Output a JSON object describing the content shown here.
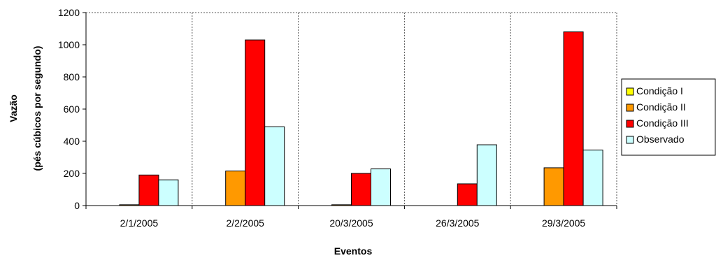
{
  "chart_data": {
    "type": "bar",
    "categories": [
      "2/1/2005",
      "2/2/2005",
      "20/3/2005",
      "26/3/2005",
      "29/3/2005"
    ],
    "series": [
      {
        "name": "Condição I",
        "color": "#FFFF00",
        "values": [
          0,
          0,
          0,
          0,
          0
        ]
      },
      {
        "name": "Condição II",
        "color": "#FF9900",
        "values": [
          5,
          215,
          5,
          0,
          235
        ]
      },
      {
        "name": "Condição III",
        "color": "#FF0000",
        "values": [
          190,
          1030,
          200,
          135,
          1080
        ]
      },
      {
        "name": "Observado",
        "color": "#CCFFFF",
        "values": [
          160,
          490,
          228,
          378,
          345
        ]
      }
    ],
    "xlabel": "Eventos",
    "ylabel_lines": [
      "Vazão",
      "(pés cúbicos por segundo)"
    ],
    "ylim": [
      0,
      1200
    ],
    "yticks": [
      "0",
      "200",
      "400",
      "600",
      "800",
      "1000",
      "1200"
    ],
    "legend_position": "right",
    "category_separators": true
  }
}
